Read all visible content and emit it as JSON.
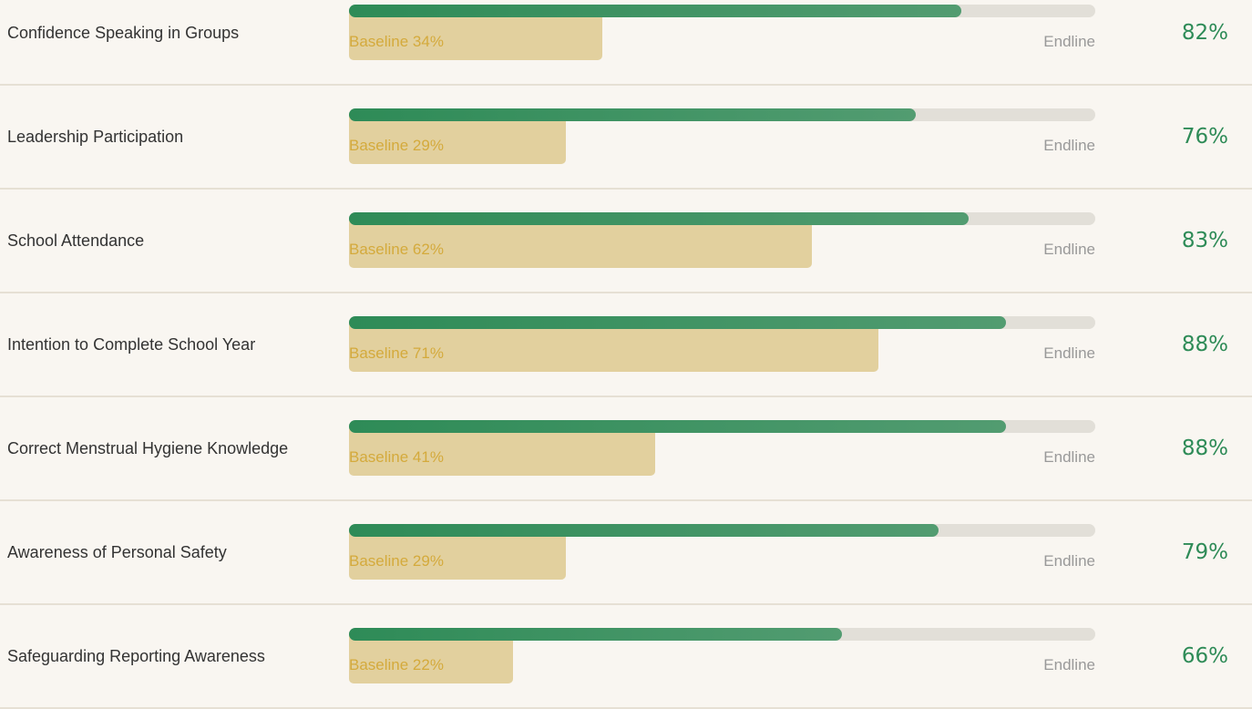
{
  "chart_data": {
    "type": "progress-compare",
    "endline_caption": "Endline",
    "rows": [
      {
        "label": "Confidence Speaking in Groups",
        "baseline": 34,
        "baseline_label": "Baseline 34%",
        "endline": 82,
        "endline_label": "82%"
      },
      {
        "label": "Leadership Participation",
        "baseline": 29,
        "baseline_label": "Baseline 29%",
        "endline": 76,
        "endline_label": "76%"
      },
      {
        "label": "School Attendance",
        "baseline": 62,
        "baseline_label": "Baseline 62%",
        "endline": 83,
        "endline_label": "83%"
      },
      {
        "label": "Intention to Complete School Year",
        "baseline": 71,
        "baseline_label": "Baseline 71%",
        "endline": 88,
        "endline_label": "88%"
      },
      {
        "label": "Correct Menstrual Hygiene Knowledge",
        "baseline": 41,
        "baseline_label": "Baseline 41%",
        "endline": 88,
        "endline_label": "88%"
      },
      {
        "label": "Awareness of Personal Safety",
        "baseline": 29,
        "baseline_label": "Baseline 29%",
        "endline": 79,
        "endline_label": "79%"
      },
      {
        "label": "Safeguarding Reporting Awareness",
        "baseline": 22,
        "baseline_label": "Baseline 22%",
        "endline": 66,
        "endline_label": "66%"
      }
    ],
    "baseline_color": "#e2d09e",
    "endline_color": "#2e8b57",
    "track_color": "#e2dfd8",
    "xlim": [
      0,
      100
    ]
  }
}
